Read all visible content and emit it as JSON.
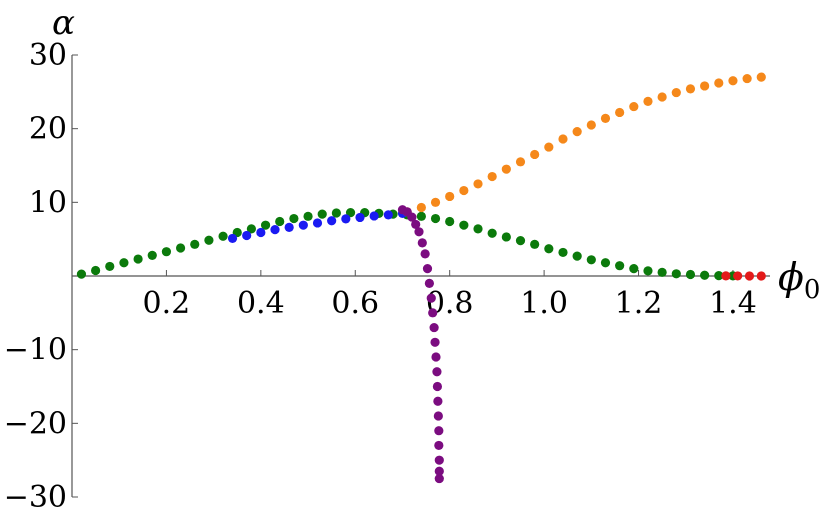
{
  "chart_data": {
    "type": "scatter",
    "title": "",
    "xlabel": "ϕ",
    "xlabel_sub": "0",
    "ylabel": "α",
    "xlim": [
      0,
      1.47
    ],
    "ylim": [
      -30,
      30
    ],
    "xticks": [
      0.2,
      0.4,
      0.6,
      0.8,
      1.0,
      1.2,
      1.4
    ],
    "xtick_labels": [
      "0.2",
      "0.4",
      "0.6",
      "0.8",
      "1.0",
      "1.2",
      "1.4"
    ],
    "yticks": [
      -30,
      -20,
      -10,
      10,
      20,
      30
    ],
    "ytick_labels": [
      "−30",
      "−20",
      "−10",
      "10",
      "20",
      "30"
    ],
    "grid": false,
    "series": [
      {
        "color": "#0b7a0b",
        "x": [
          0.02,
          0.05,
          0.08,
          0.11,
          0.14,
          0.17,
          0.2,
          0.23,
          0.26,
          0.29,
          0.32,
          0.35,
          0.38,
          0.41,
          0.44,
          0.47,
          0.5,
          0.53,
          0.56,
          0.59,
          0.62,
          0.65,
          0.68,
          0.71,
          0.74,
          0.77,
          0.8,
          0.83,
          0.86,
          0.89,
          0.92,
          0.95,
          0.98,
          1.01,
          1.04,
          1.07,
          1.1,
          1.13,
          1.16,
          1.19,
          1.22,
          1.25,
          1.28,
          1.31,
          1.34,
          1.37,
          1.4
        ],
        "y": [
          0.25,
          0.75,
          1.3,
          1.8,
          2.3,
          2.8,
          3.3,
          3.8,
          4.3,
          4.85,
          5.4,
          5.9,
          6.4,
          6.9,
          7.4,
          7.8,
          8.1,
          8.4,
          8.55,
          8.6,
          8.6,
          8.5,
          8.4,
          8.3,
          8.1,
          7.8,
          7.4,
          6.9,
          6.4,
          5.8,
          5.3,
          4.8,
          4.3,
          3.7,
          3.2,
          2.7,
          2.2,
          1.8,
          1.4,
          1.0,
          0.7,
          0.5,
          0.3,
          0.2,
          0.1,
          0.05,
          0.02
        ]
      },
      {
        "color": "#1a1af2",
        "x": [
          0.34,
          0.37,
          0.4,
          0.43,
          0.46,
          0.49,
          0.52,
          0.55,
          0.58,
          0.61,
          0.64,
          0.67,
          0.7
        ],
        "y": [
          5.1,
          5.5,
          5.9,
          6.3,
          6.6,
          6.9,
          7.2,
          7.5,
          7.75,
          7.95,
          8.15,
          8.3,
          8.5
        ]
      },
      {
        "color": "#f5881a",
        "x": [
          0.71,
          0.74,
          0.77,
          0.8,
          0.83,
          0.86,
          0.89,
          0.92,
          0.95,
          0.98,
          1.01,
          1.04,
          1.07,
          1.1,
          1.13,
          1.16,
          1.19,
          1.22,
          1.25,
          1.28,
          1.31,
          1.34,
          1.37,
          1.4,
          1.43,
          1.46
        ],
        "y": [
          8.7,
          9.3,
          10.0,
          10.8,
          11.6,
          12.5,
          13.5,
          14.5,
          15.5,
          16.5,
          17.5,
          18.6,
          19.6,
          20.5,
          21.4,
          22.2,
          23.0,
          23.7,
          24.3,
          24.9,
          25.4,
          25.8,
          26.2,
          26.5,
          26.8,
          27.0
        ]
      },
      {
        "color": "#e31a1a",
        "x": [
          1.385,
          1.41,
          1.435,
          1.46
        ],
        "y": [
          0.02,
          0.01,
          0.005,
          0.0
        ]
      },
      {
        "color": "#7b0c80",
        "x": [
          0.7,
          0.71,
          0.72,
          0.728,
          0.735,
          0.742,
          0.748,
          0.753,
          0.757,
          0.761,
          0.764,
          0.767,
          0.769,
          0.771,
          0.773,
          0.774,
          0.775,
          0.776,
          0.777,
          0.777,
          0.778,
          0.778,
          0.778
        ],
        "y": [
          9.0,
          8.7,
          8.0,
          7.0,
          6.0,
          4.5,
          3.0,
          1.0,
          -1.0,
          -3.0,
          -5.0,
          -7.0,
          -9.0,
          -11.0,
          -13.0,
          -15.0,
          -17.0,
          -19.0,
          -21.0,
          -23.0,
          -25.0,
          -26.5,
          -27.5
        ]
      }
    ]
  }
}
